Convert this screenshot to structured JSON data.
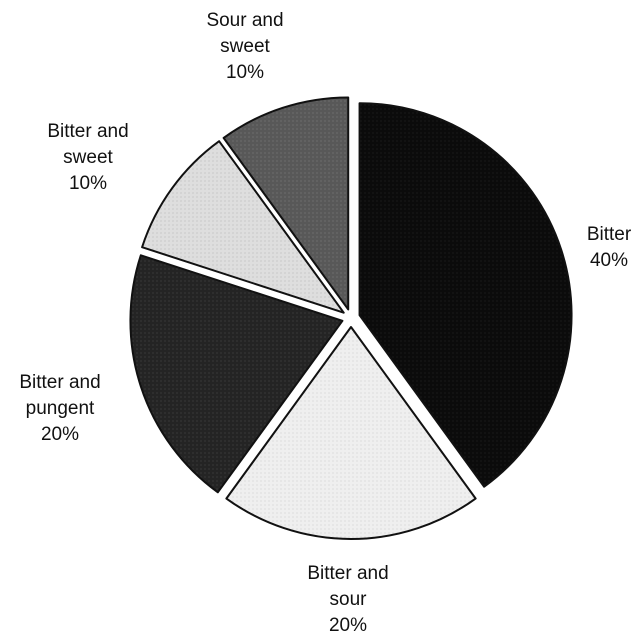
{
  "chart_data": {
    "type": "pie",
    "title": "",
    "slices": [
      {
        "label_lines": [
          "Bitter",
          "40%"
        ],
        "value": 40,
        "color": "#0b0b0b",
        "pattern": "dots-dark"
      },
      {
        "label_lines": [
          "Bitter and",
          "sour",
          "20%"
        ],
        "value": 20,
        "color": "#ececec",
        "pattern": "dots-light"
      },
      {
        "label_lines": [
          "Bitter and",
          "pungent",
          "20%"
        ],
        "value": 20,
        "color": "#262626",
        "pattern": "dots-mid-dark"
      },
      {
        "label_lines": [
          "Bitter and",
          "sweet",
          "10%"
        ],
        "value": 10,
        "color": "#dcdcdc",
        "pattern": "dots-light2"
      },
      {
        "label_lines": [
          "Sour and",
          "sweet",
          "10%"
        ],
        "value": 10,
        "color": "#5a5a5a",
        "pattern": "dots-mid"
      }
    ],
    "start": "12 o'clock",
    "direction": "clockwise",
    "exploded": true,
    "legend": "none"
  }
}
